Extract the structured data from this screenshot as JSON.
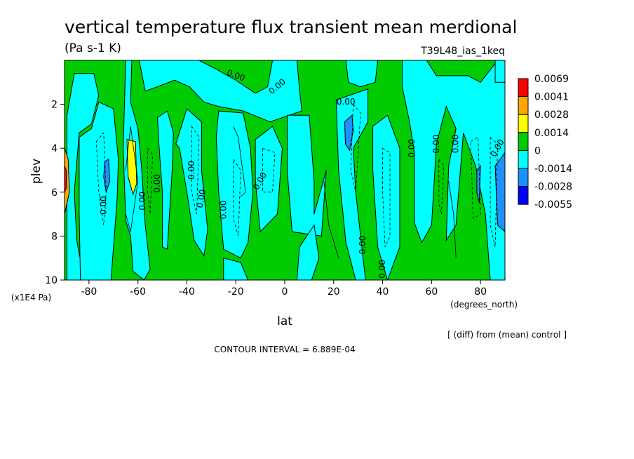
{
  "chart_data": {
    "type": "heatmap",
    "title": "vertical temperature flux transient mean merdional",
    "units": "(Pa s-1 K)",
    "run": "T39L48_ias_1keq",
    "xlabel": "lat",
    "xunits": "(degrees_north)",
    "ylabel": "plev",
    "yunits": "(x1E4 Pa)",
    "xlim": [
      -90,
      90
    ],
    "ylim": [
      10,
      0
    ],
    "x_ticks": [
      "-80",
      "-60",
      "-40",
      "-20",
      "0",
      "20",
      "40",
      "60",
      "80"
    ],
    "x_tick_values": [
      -80,
      -60,
      -40,
      -20,
      0,
      20,
      40,
      60,
      80
    ],
    "y_ticks": [
      "2",
      "4",
      "6",
      "8",
      "10"
    ],
    "y_tick_values": [
      2,
      4,
      6,
      8,
      10
    ],
    "contour_interval_text": "CONTOUR INTERVAL = 6.889E-04",
    "footnote": "[ (diff) from (mean) control ]",
    "contour_label": "0.00",
    "levels": [
      "0.0069",
      "0.0041",
      "0.0028",
      "0.0014",
      "0",
      "-0.0014",
      "-0.0028",
      "-0.0055"
    ],
    "level_colors": [
      "#ff0000",
      "#ffa500",
      "#ffff00",
      "#00cc00",
      "#00ffff",
      "#1e90ff",
      "#0000ff"
    ],
    "regions": [
      {
        "name": "cyan-band-sh-polar",
        "lat": [
          -88,
          -78
        ],
        "plev": [
          1,
          10
        ],
        "sign": "negative"
      },
      {
        "name": "yellow-max-60s",
        "lat": [
          -64,
          -60
        ],
        "plev": [
          3.7,
          6
        ],
        "sign": "positive"
      },
      {
        "name": "blue-min-73s",
        "lat": [
          -75,
          -71
        ],
        "plev": [
          4.5,
          6.2
        ],
        "sign": "negative"
      },
      {
        "name": "blue-min-28n",
        "lat": [
          24,
          28
        ],
        "plev": [
          2.5,
          4.2
        ],
        "sign": "negative"
      },
      {
        "name": "blue-min-85n",
        "lat": [
          82,
          88
        ],
        "plev": [
          4,
          8
        ],
        "sign": "negative"
      }
    ]
  }
}
